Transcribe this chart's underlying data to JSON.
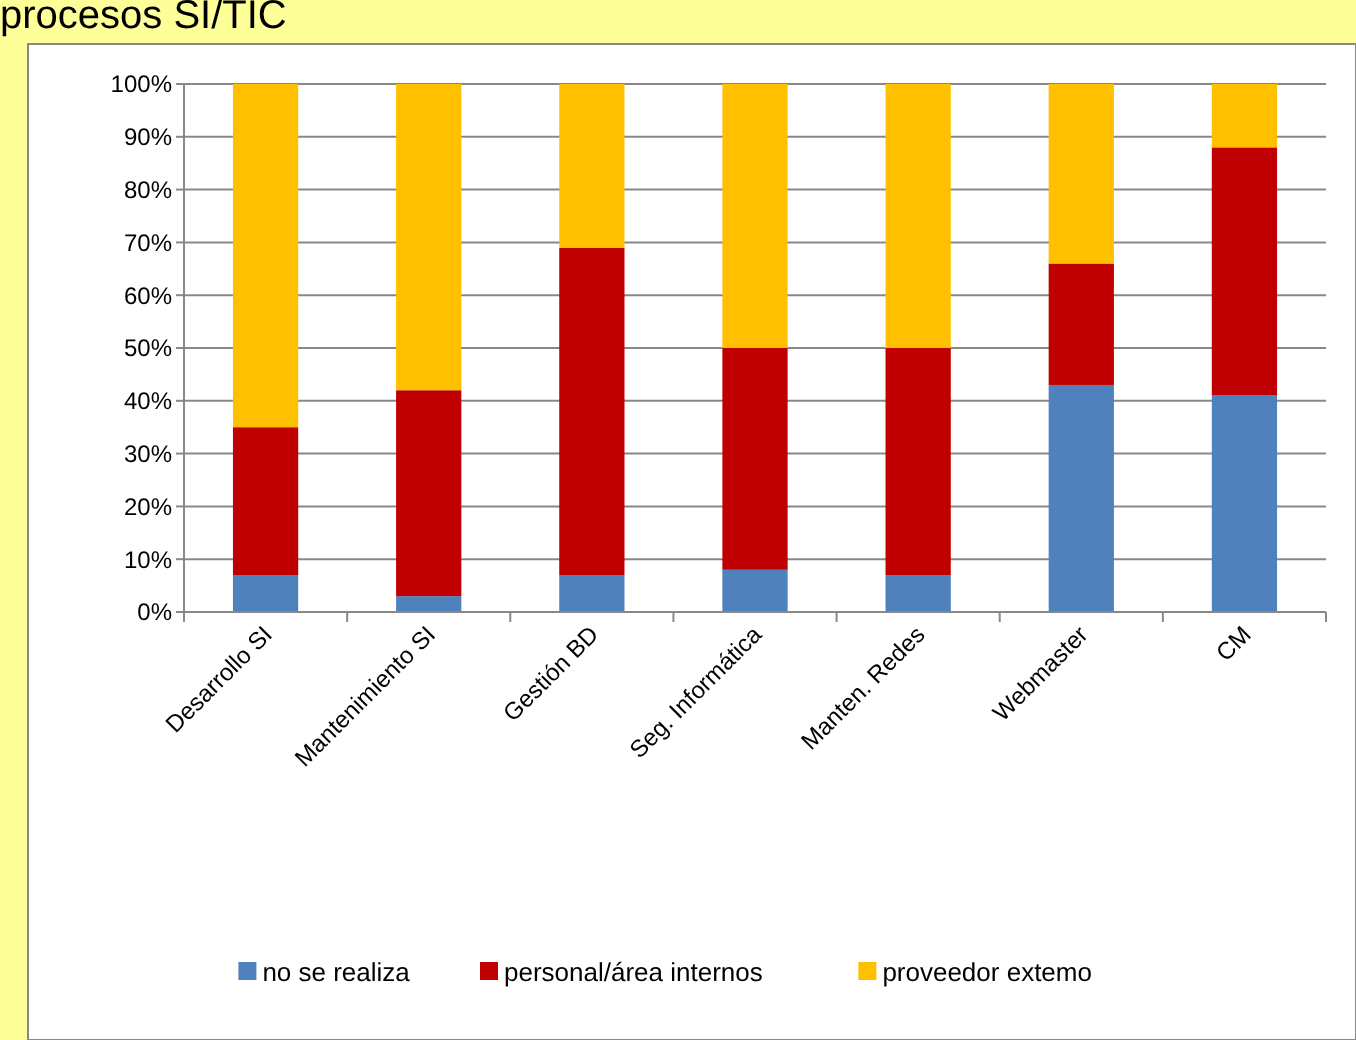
{
  "chart_data": {
    "type": "bar",
    "title": "procesos SI/TIC",
    "stacked": true,
    "categories": [
      "Desarrollo SI",
      "Mantenimiento SI",
      "Gestión BD",
      "Seg. Informática",
      "Manten. Redes",
      "Webmaster",
      "CM"
    ],
    "series": [
      {
        "name": "no se realiza",
        "color": "#4f81bd",
        "values": [
          7,
          3,
          7,
          8,
          7,
          43,
          41
        ]
      },
      {
        "name": "personal/área internos",
        "color": "#c00000",
        "values": [
          28,
          39,
          62,
          42,
          43,
          23,
          47
        ]
      },
      {
        "name": "proveedor extemo",
        "color": "#ffc000",
        "values": [
          65,
          58,
          31,
          50,
          50,
          34,
          12
        ]
      }
    ],
    "ylim": [
      0,
      100
    ],
    "yticks": [
      {
        "value": 0,
        "label": "0%"
      },
      {
        "value": 10,
        "label": "10%"
      },
      {
        "value": 20,
        "label": "20%"
      },
      {
        "value": 30,
        "label": "30%"
      },
      {
        "value": 40,
        "label": "40%"
      },
      {
        "value": 50,
        "label": "50%"
      },
      {
        "value": 60,
        "label": "60%"
      },
      {
        "value": 70,
        "label": "70%"
      },
      {
        "value": 80,
        "label": "80%"
      },
      {
        "value": 90,
        "label": "90%"
      },
      {
        "value": 100,
        "label": "100%"
      }
    ],
    "grid": "y",
    "legend": "bottom"
  }
}
